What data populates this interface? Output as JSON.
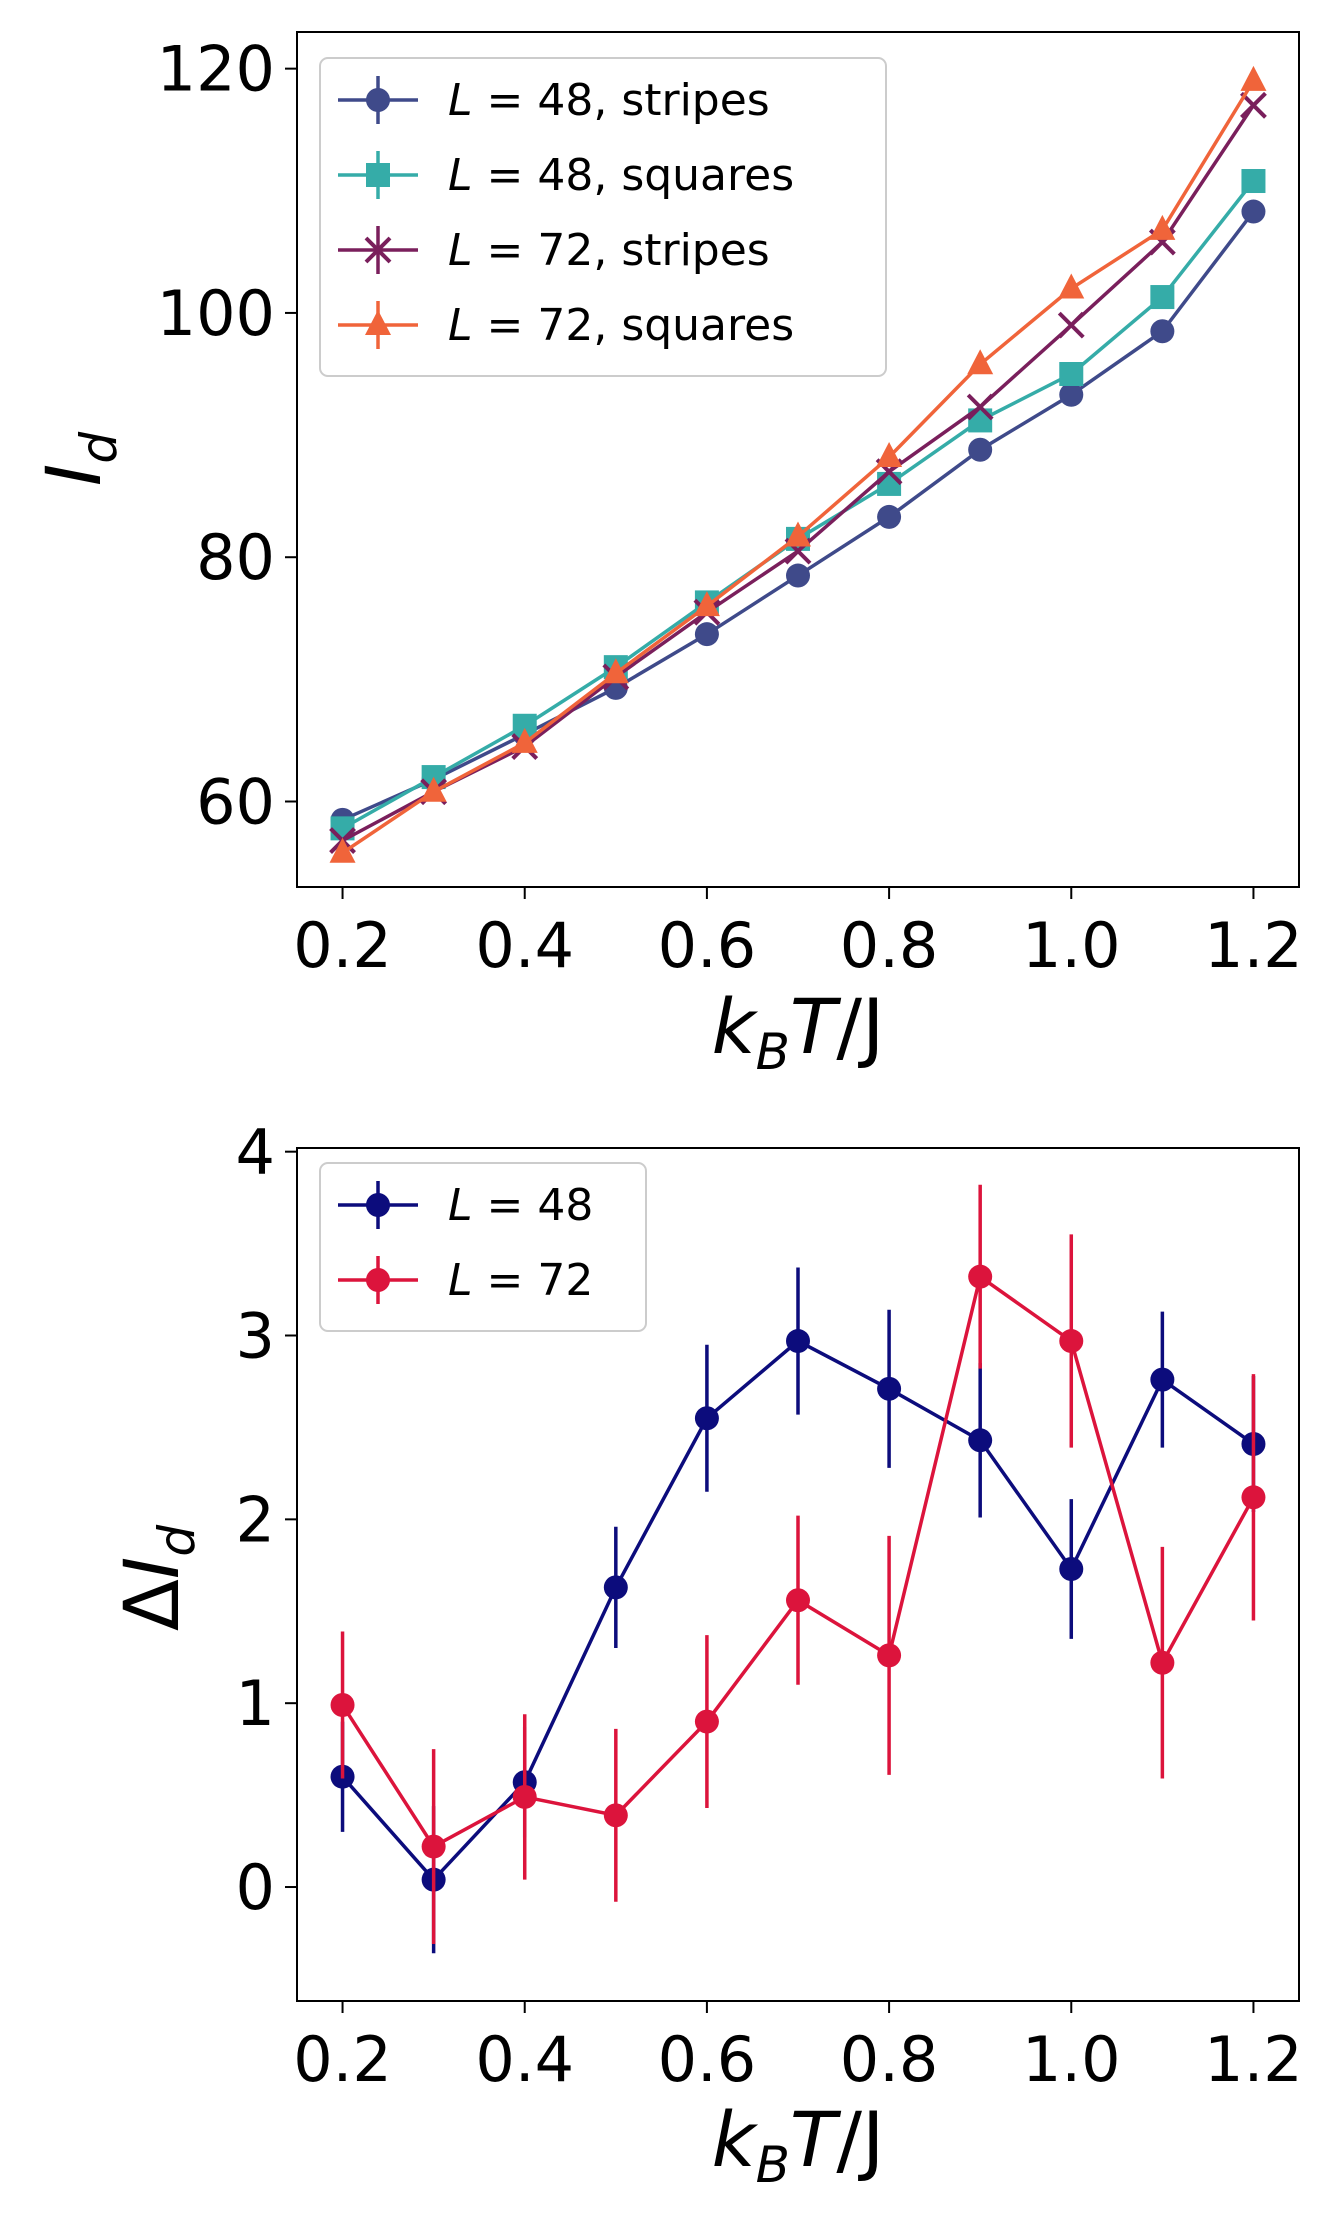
{
  "chart_data": [
    {
      "type": "line",
      "title": "",
      "xlabel": "k_B T/J",
      "ylabel": "I_d",
      "xlim": [
        0.15,
        1.25
      ],
      "ylim": [
        53,
        123
      ],
      "xticks": [
        "0.2",
        "0.4",
        "0.6",
        "0.8",
        "1.0",
        "1.2"
      ],
      "yticks": [
        "60",
        "80",
        "100",
        "120"
      ],
      "legend_position": "top-left",
      "grid": false,
      "x": [
        0.2,
        0.3,
        0.4,
        0.5,
        0.6,
        0.7,
        0.8,
        0.9,
        1.0,
        1.1,
        1.2
      ],
      "series": [
        {
          "name": "L = 48, stripes",
          "color": "#3f4a8a",
          "marker": "circle",
          "values": [
            58.5,
            61.8,
            65.5,
            69.3,
            73.7,
            78.5,
            83.3,
            88.8,
            93.3,
            98.5,
            108.3
          ]
        },
        {
          "name": "L = 48, squares",
          "color": "#35aca8",
          "marker": "square",
          "values": [
            57.8,
            62.0,
            66.2,
            71.0,
            76.3,
            81.5,
            86.0,
            91.2,
            95.0,
            101.3,
            110.8
          ]
        },
        {
          "name": "L = 72, stripes",
          "color": "#7a1f5c",
          "marker": "x",
          "values": [
            56.8,
            60.8,
            64.5,
            70.2,
            75.5,
            80.5,
            87.0,
            92.3,
            99.0,
            105.8,
            117.0
          ]
        },
        {
          "name": "L = 72, squares",
          "color": "#f0643a",
          "marker": "triangle",
          "values": [
            55.8,
            60.8,
            64.8,
            70.5,
            76.0,
            81.7,
            88.2,
            95.8,
            102.0,
            106.8,
            119.0
          ]
        }
      ]
    },
    {
      "type": "line",
      "title": "",
      "xlabel": "k_B T/J",
      "ylabel": "ΔI_d",
      "xlim": [
        0.15,
        1.25
      ],
      "ylim": [
        -0.62,
        4.02
      ],
      "xticks": [
        "0.2",
        "0.4",
        "0.6",
        "0.8",
        "1.0",
        "1.2"
      ],
      "yticks": [
        "0",
        "1",
        "2",
        "3",
        "4"
      ],
      "legend_position": "top-left",
      "grid": false,
      "x": [
        0.2,
        0.3,
        0.4,
        0.5,
        0.6,
        0.7,
        0.8,
        0.9,
        1.0,
        1.1,
        1.2
      ],
      "series": [
        {
          "name": "L = 48",
          "color": "#0c0c7c",
          "marker": "circle",
          "values": [
            0.6,
            0.04,
            0.57,
            1.63,
            2.55,
            2.97,
            2.71,
            2.43,
            1.73,
            2.76,
            2.41
          ],
          "errors": [
            0.3,
            0.4,
            0.3,
            0.33,
            0.4,
            0.4,
            0.43,
            0.42,
            0.38,
            0.37,
            0.37
          ]
        },
        {
          "name": "L = 72",
          "color": "#dc143c",
          "marker": "circle",
          "values": [
            0.99,
            0.22,
            0.49,
            0.39,
            0.9,
            1.56,
            1.26,
            3.32,
            2.97,
            1.22,
            2.12
          ],
          "errors": [
            0.4,
            0.53,
            0.45,
            0.47,
            0.47,
            0.46,
            0.65,
            0.5,
            0.58,
            0.63,
            0.67
          ]
        }
      ]
    }
  ]
}
